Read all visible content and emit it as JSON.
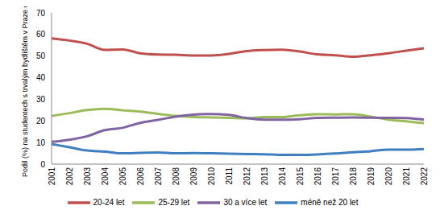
{
  "chart_data": {
    "type": "line",
    "y_label": "Podíl (%) na studentech s trvalým bydlištěm v Praze celkem",
    "categories": [
      "2001",
      "2002",
      "2003",
      "2004",
      "2005",
      "2006",
      "2007",
      "2008",
      "2009",
      "2010",
      "2011",
      "2012",
      "2013",
      "2014",
      "2015",
      "2016",
      "2017",
      "2018",
      "2019",
      "2020",
      "2021",
      "2022"
    ],
    "series": [
      {
        "name": "méně než 20 let",
        "color": "#3f7fc0",
        "values": [
          9.3,
          7.8,
          6.3,
          5.8,
          5.0,
          5.2,
          5.4,
          5.0,
          5.1,
          5.0,
          4.8,
          4.7,
          4.6,
          4.3,
          4.3,
          4.5,
          4.9,
          5.5,
          6.0,
          6.7,
          6.7,
          7.0
        ]
      },
      {
        "name": "20-24 let",
        "color": "#c0504d",
        "values": [
          58.2,
          57.2,
          55.7,
          52.9,
          53.1,
          51.3,
          50.7,
          50.6,
          50.3,
          50.3,
          51.0,
          52.3,
          52.8,
          53.0,
          52.1,
          50.8,
          50.4,
          49.7,
          50.4,
          51.3,
          52.5,
          53.6
        ]
      },
      {
        "name": "25-29 let",
        "color": "#9bbb59",
        "values": [
          22.3,
          23.6,
          25.0,
          25.6,
          24.9,
          24.3,
          23.3,
          22.3,
          21.8,
          21.6,
          21.4,
          21.2,
          21.8,
          21.8,
          22.6,
          23.1,
          23.0,
          23.1,
          22.0,
          20.6,
          19.8,
          19.0
        ]
      },
      {
        "name": "30 a více let",
        "color": "#8064a2",
        "values": [
          10.3,
          11.3,
          12.9,
          15.7,
          16.8,
          19.1,
          20.5,
          22.0,
          22.9,
          23.2,
          22.8,
          21.3,
          20.6,
          20.6,
          20.8,
          21.4,
          21.5,
          21.6,
          21.5,
          21.4,
          21.3,
          20.6
        ]
      }
    ],
    "ylim": [
      0,
      70
    ],
    "yticks": [
      0,
      10,
      20,
      30,
      40,
      50,
      60,
      70
    ],
    "grid": false,
    "legend": "bottom"
  }
}
